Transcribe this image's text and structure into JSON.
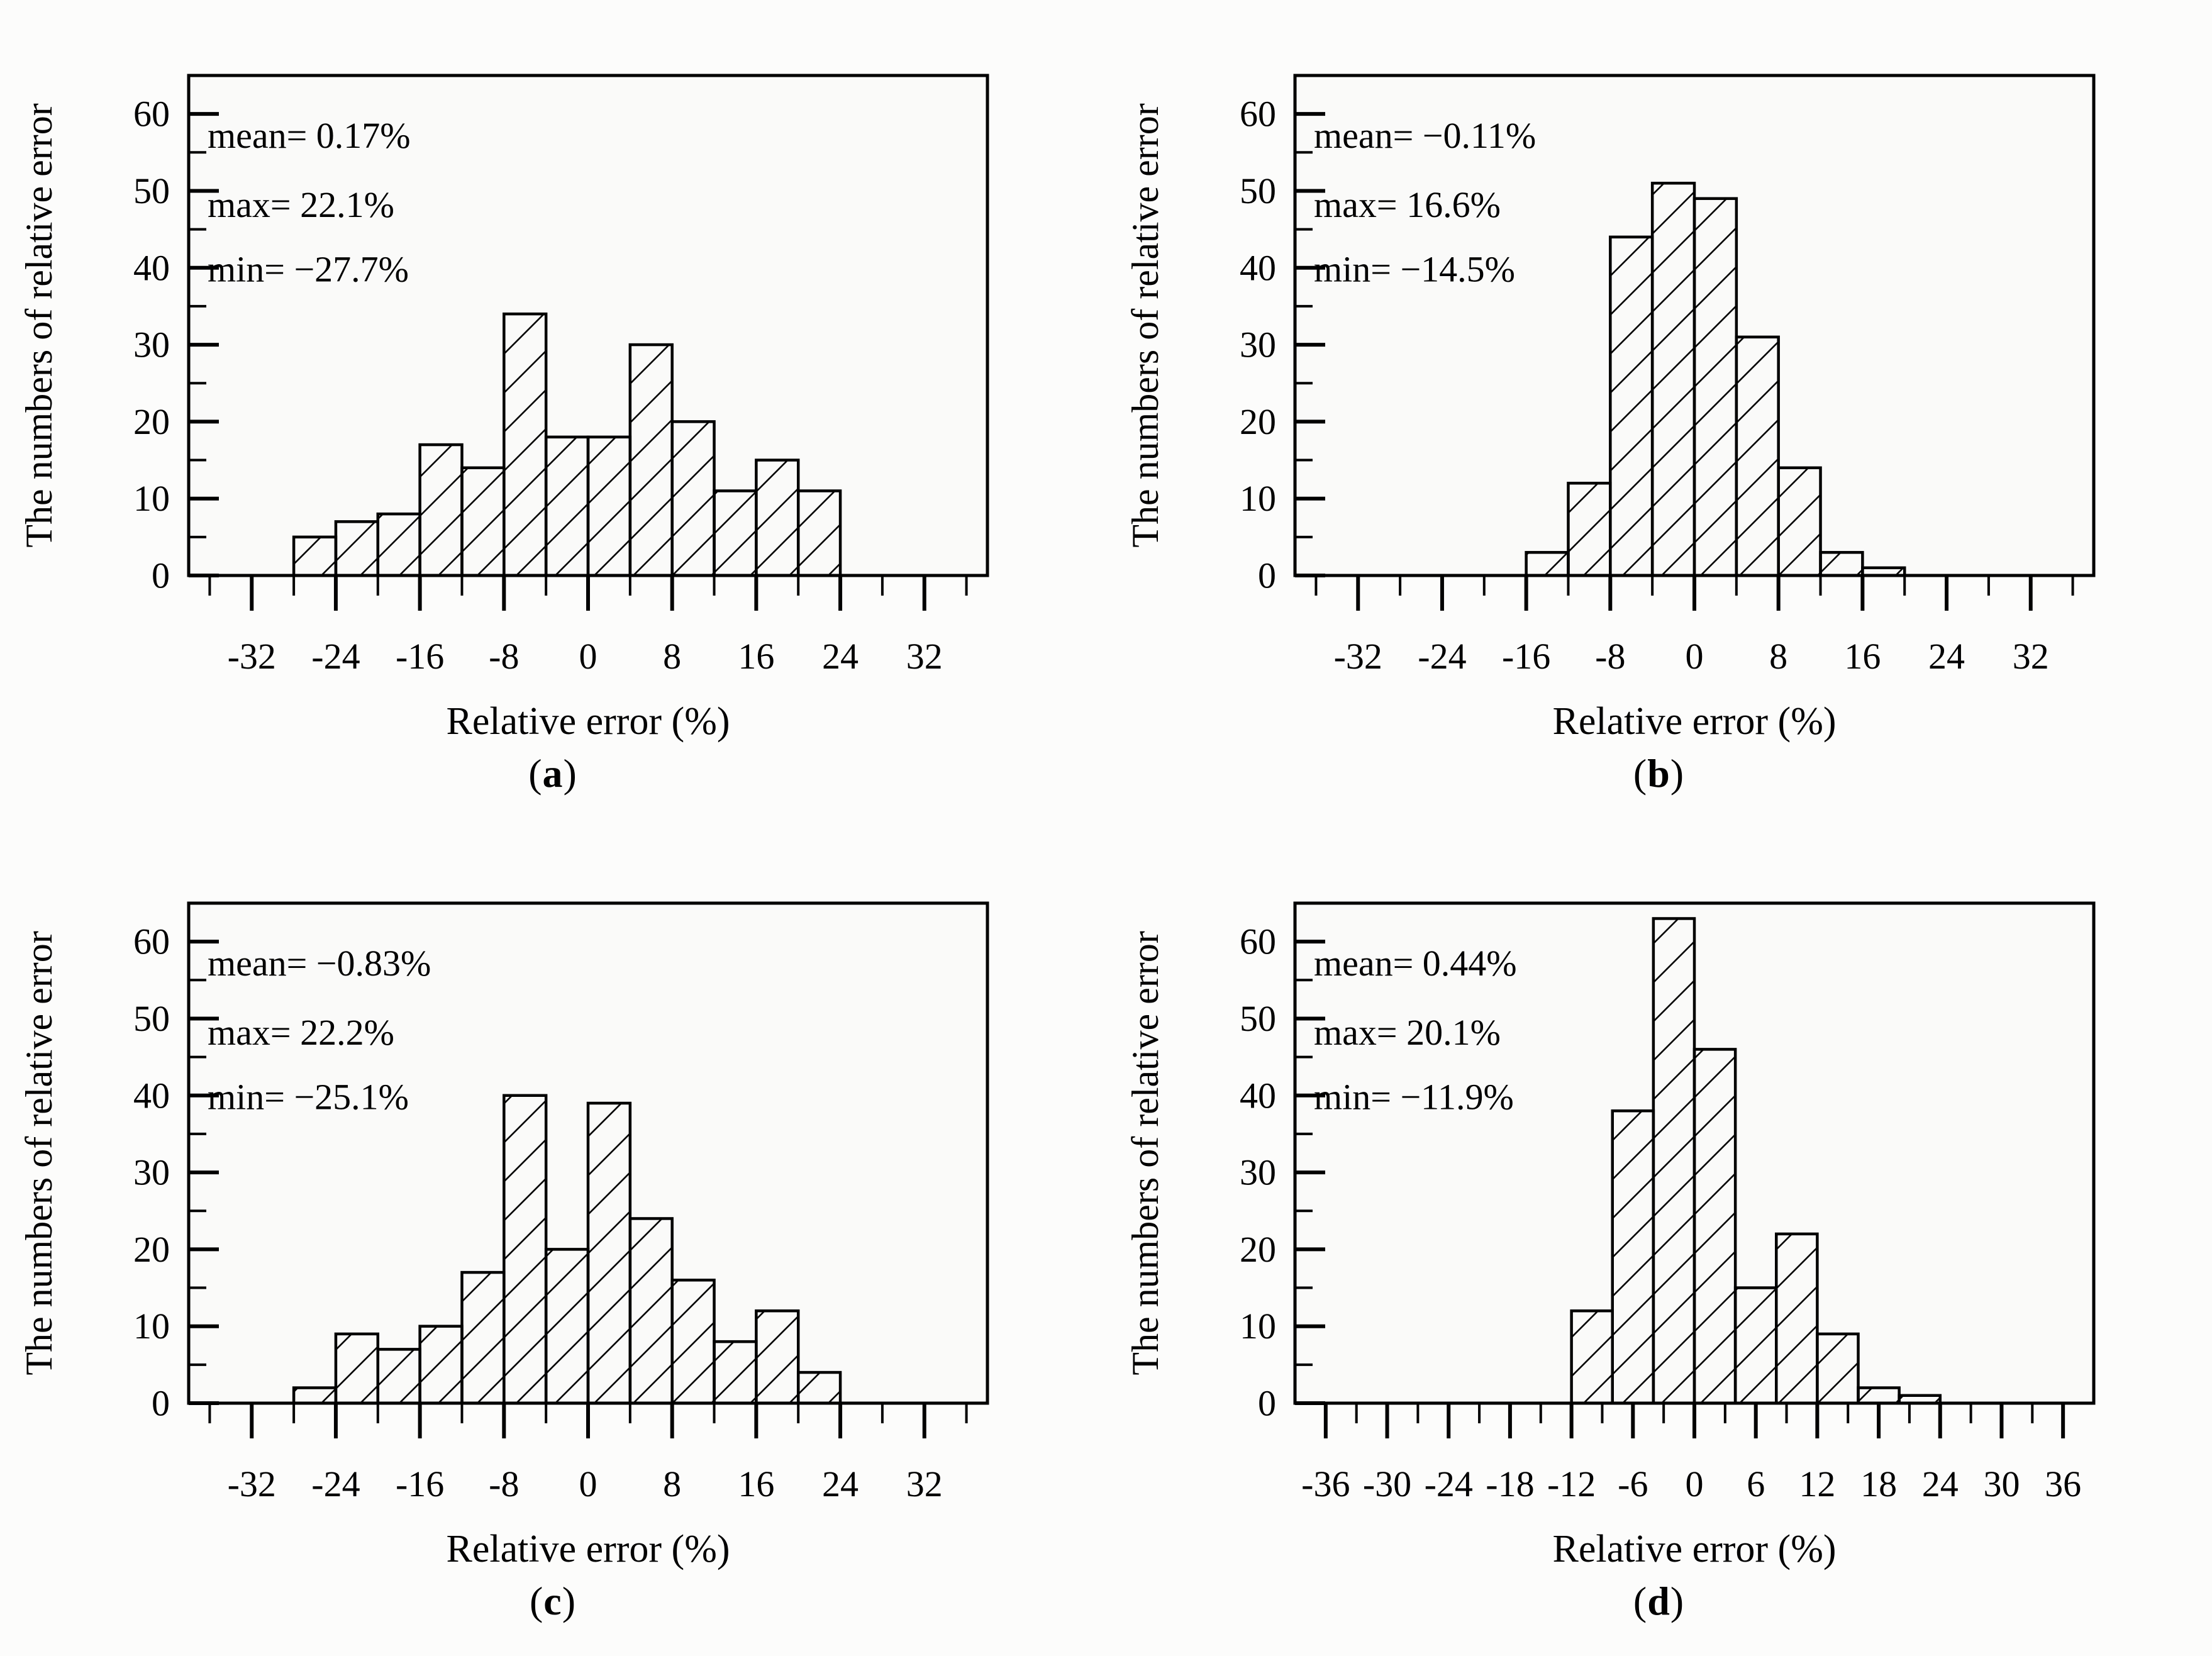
{
  "page": {
    "background": "#fcfcfb",
    "plot_background": "#fafaf9",
    "ink_color": "#000000"
  },
  "figure": {
    "panels_order": [
      "a",
      "b",
      "c",
      "d"
    ]
  },
  "chart_data": [
    {
      "type": "bar",
      "panel": "a",
      "caption_prefix": "(",
      "caption_letter": "a",
      "caption_suffix": ")",
      "title": "",
      "ylabel": "The numbers of relative error",
      "xlabel": "Relative error (%)",
      "annotations": [
        "mean= 0.17%",
        "max= 22.1%",
        "min= −27.7%"
      ],
      "bin_start": -28,
      "bin_width": 4,
      "values": [
        5,
        7,
        8,
        17,
        14,
        34,
        18,
        18,
        30,
        20,
        11,
        15,
        11
      ],
      "xlim": [
        -38,
        38
      ],
      "ylim": [
        0,
        65
      ],
      "x_major_ticks": [
        -32,
        -24,
        -16,
        -8,
        0,
        8,
        16,
        24,
        32
      ],
      "x_minor_ticks": [
        -36,
        -28,
        -20,
        -12,
        -4,
        4,
        12,
        20,
        28,
        36
      ],
      "y_major_ticks": [
        0,
        10,
        20,
        30,
        40,
        50,
        60
      ],
      "y_minor_ticks": [
        5,
        15,
        25,
        35,
        45,
        55,
        65
      ],
      "grid": false,
      "hatch": "diagonal",
      "legend": "none"
    },
    {
      "type": "bar",
      "panel": "b",
      "caption_prefix": "(",
      "caption_letter": "b",
      "caption_suffix": ")",
      "title": "",
      "ylabel": "The numbers of relative error",
      "xlabel": "Relative error (%)",
      "annotations": [
        "mean= −0.11%",
        "max= 16.6%",
        "min= −14.5%"
      ],
      "bin_start": -16,
      "bin_width": 4,
      "values": [
        3,
        12,
        44,
        51,
        49,
        31,
        14,
        3,
        1
      ],
      "xlim": [
        -38,
        38
      ],
      "ylim": [
        0,
        65
      ],
      "x_major_ticks": [
        -32,
        -24,
        -16,
        -8,
        0,
        8,
        16,
        24,
        32
      ],
      "x_minor_ticks": [
        -36,
        -28,
        -20,
        -12,
        -4,
        4,
        12,
        20,
        28,
        36
      ],
      "y_major_ticks": [
        0,
        10,
        20,
        30,
        40,
        50,
        60
      ],
      "y_minor_ticks": [
        5,
        15,
        25,
        35,
        45,
        55,
        65
      ],
      "grid": false,
      "hatch": "diagonal",
      "legend": "none"
    },
    {
      "type": "bar",
      "panel": "c",
      "caption_prefix": "(",
      "caption_letter": "c",
      "caption_suffix": ")",
      "title": "",
      "ylabel": "The numbers of relative error",
      "xlabel": "Relative error (%)",
      "annotations": [
        "mean= −0.83%",
        "max= 22.2%",
        "min= −25.1%"
      ],
      "bin_start": -28,
      "bin_width": 4,
      "values": [
        2,
        9,
        7,
        10,
        17,
        40,
        20,
        39,
        24,
        16,
        8,
        12,
        4
      ],
      "xlim": [
        -38,
        38
      ],
      "ylim": [
        0,
        65
      ],
      "x_major_ticks": [
        -32,
        -24,
        -16,
        -8,
        0,
        8,
        16,
        24,
        32
      ],
      "x_minor_ticks": [
        -36,
        -28,
        -20,
        -12,
        -4,
        4,
        12,
        20,
        28,
        36
      ],
      "y_major_ticks": [
        0,
        10,
        20,
        30,
        40,
        50,
        60
      ],
      "y_minor_ticks": [
        5,
        15,
        25,
        35,
        45,
        55,
        65
      ],
      "grid": false,
      "hatch": "diagonal",
      "legend": "none"
    },
    {
      "type": "bar",
      "panel": "d",
      "caption_prefix": "(",
      "caption_letter": "d",
      "caption_suffix": ")",
      "title": "",
      "ylabel": "The numbers of relative error",
      "xlabel": "Relative error (%)",
      "annotations": [
        "mean= 0.44%",
        "max= 20.1%",
        "min= −11.9%"
      ],
      "bin_start": -12,
      "bin_width": 4,
      "values": [
        12,
        38,
        63,
        46,
        15,
        22,
        9,
        2,
        1
      ],
      "xlim": [
        -39,
        39
      ],
      "ylim": [
        0,
        65
      ],
      "x_major_ticks": [
        -36,
        -30,
        -24,
        -18,
        -12,
        -6,
        0,
        6,
        12,
        18,
        24,
        30,
        36
      ],
      "x_minor_ticks": [
        -33,
        -27,
        -21,
        -15,
        -9,
        -3,
        3,
        9,
        15,
        21,
        27,
        33
      ],
      "y_major_ticks": [
        0,
        10,
        20,
        30,
        40,
        50,
        60
      ],
      "y_minor_ticks": [
        5,
        15,
        25,
        35,
        45,
        55,
        65
      ],
      "grid": false,
      "hatch": "diagonal",
      "legend": "none"
    }
  ]
}
